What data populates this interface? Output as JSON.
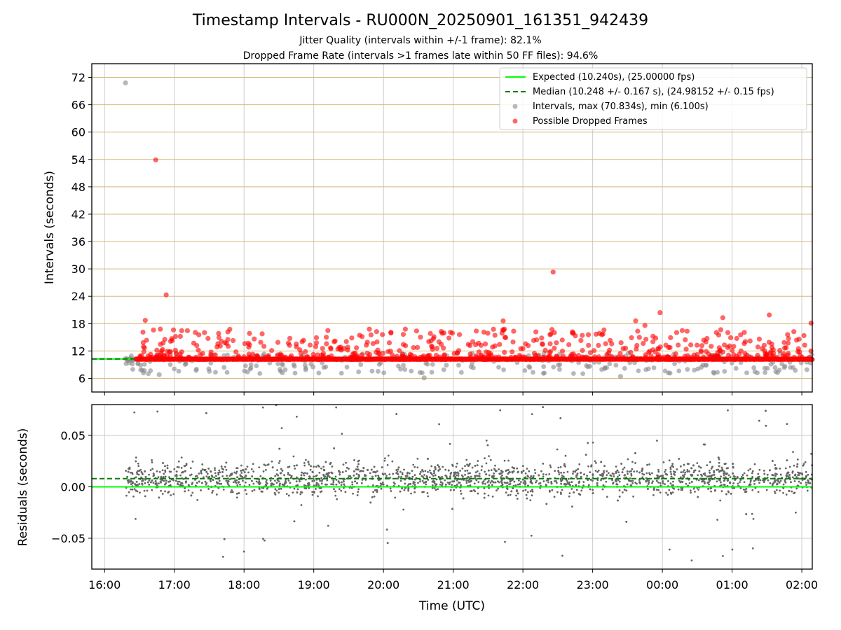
{
  "header": {
    "title": "Timestamp Intervals - RU000N_20250901_161351_942439",
    "subtitle_1": "Jitter Quality (intervals within +/-1 frame): 82.1%",
    "subtitle_2": "Dropped Frame Rate (intervals >1 frames late within 50 FF files): 94.6%"
  },
  "colors": {
    "expected": "#00ff00",
    "median": "#008000",
    "intervals": "#888888",
    "dropped": "#ff0000",
    "top_grid": "#d4b97a",
    "grid": "#cccccc",
    "residual_points": "#666666"
  },
  "chart_data": [
    {
      "type": "scatter",
      "ylabel": "Intervals (seconds)",
      "ylim": [
        3,
        75
      ],
      "xlim": [
        "15:49",
        "02:09"
      ],
      "yticks": [
        6,
        12,
        18,
        24,
        30,
        36,
        42,
        48,
        54,
        60,
        66,
        72
      ],
      "ytick_labels": [
        "6",
        "12",
        "18",
        "24",
        "30",
        "36",
        "42",
        "48",
        "54",
        "60",
        "66",
        "72"
      ],
      "grid": true,
      "legend_position": "top-right",
      "legend": [
        {
          "label": "Expected (10.240s), (25.00000 fps)",
          "kind": "solid-line",
          "color": "#00ff00"
        },
        {
          "label": "Median (10.248 +/- 0.167 s), (24.98152 +/- 0.15 fps)",
          "kind": "dashed-line",
          "color": "#008000"
        },
        {
          "label": "Intervals, max (70.834s), min (6.100s)",
          "kind": "marker",
          "color": "#888888"
        },
        {
          "label": "Possible Dropped Frames",
          "kind": "marker",
          "color": "#ff0000"
        }
      ],
      "expected_value": 10.24,
      "median_value": 10.248,
      "series_note_outliers": [
        {
          "x": "16:18",
          "y": 70.8,
          "series": "Intervals"
        },
        {
          "x": "16:44",
          "y": 53.9,
          "series": "Possible Dropped Frames"
        },
        {
          "x": "16:53",
          "y": 24.3,
          "series": "Possible Dropped Frames"
        },
        {
          "x": "22:26",
          "y": 29.3,
          "series": "Possible Dropped Frames"
        },
        {
          "x": "23:58",
          "y": 20.4,
          "series": "Possible Dropped Frames"
        },
        {
          "x": "00:52",
          "y": 19.3,
          "series": "Possible Dropped Frames"
        },
        {
          "x": "01:32",
          "y": 19.9,
          "series": "Possible Dropped Frames"
        },
        {
          "x": "02:08",
          "y": 18.1,
          "series": "Possible Dropped Frames"
        },
        {
          "x": "16:35",
          "y": 18.7,
          "series": "Possible Dropped Frames"
        },
        {
          "x": "21:43",
          "y": 18.6,
          "series": "Possible Dropped Frames"
        },
        {
          "x": "23:37",
          "y": 18.6,
          "series": "Possible Dropped Frames"
        },
        {
          "x": "23:45",
          "y": 17.6,
          "series": "Possible Dropped Frames"
        },
        {
          "x": "20:35",
          "y": 6.1,
          "series": "Intervals"
        },
        {
          "x": "23:24",
          "y": 6.4,
          "series": "Intervals"
        },
        {
          "x": "16:47",
          "y": 6.8,
          "series": "Intervals"
        }
      ],
      "dense_band": {
        "x_start": "16:27",
        "x_end": "02:09",
        "y": 10.2,
        "series": "Possible Dropped Frames"
      },
      "scatter_cloud": {
        "x_start": "16:18",
        "x_end": "02:09",
        "y_min": 6,
        "y_max": 17
      }
    },
    {
      "type": "scatter",
      "xlabel": "Time (UTC)",
      "ylabel": "Residuals (seconds)",
      "ylim": [
        -0.08,
        0.08
      ],
      "yticks": [
        -0.05,
        0.0,
        0.05
      ],
      "ytick_labels": [
        "−0.05",
        "0.00",
        "0.05"
      ],
      "xticks": [
        "16:00",
        "17:00",
        "18:00",
        "19:00",
        "20:00",
        "21:00",
        "22:00",
        "23:00",
        "00:00",
        "01:00",
        "02:00"
      ],
      "grid": true,
      "expected_value": 0.0,
      "median_value": 0.008,
      "residual_cloud": {
        "x_start": "16:18",
        "x_end": "02:09",
        "y_core_min": -0.02,
        "y_core_max": 0.035,
        "y_extreme_min": -0.08,
        "y_extreme_max": 0.08
      }
    }
  ]
}
